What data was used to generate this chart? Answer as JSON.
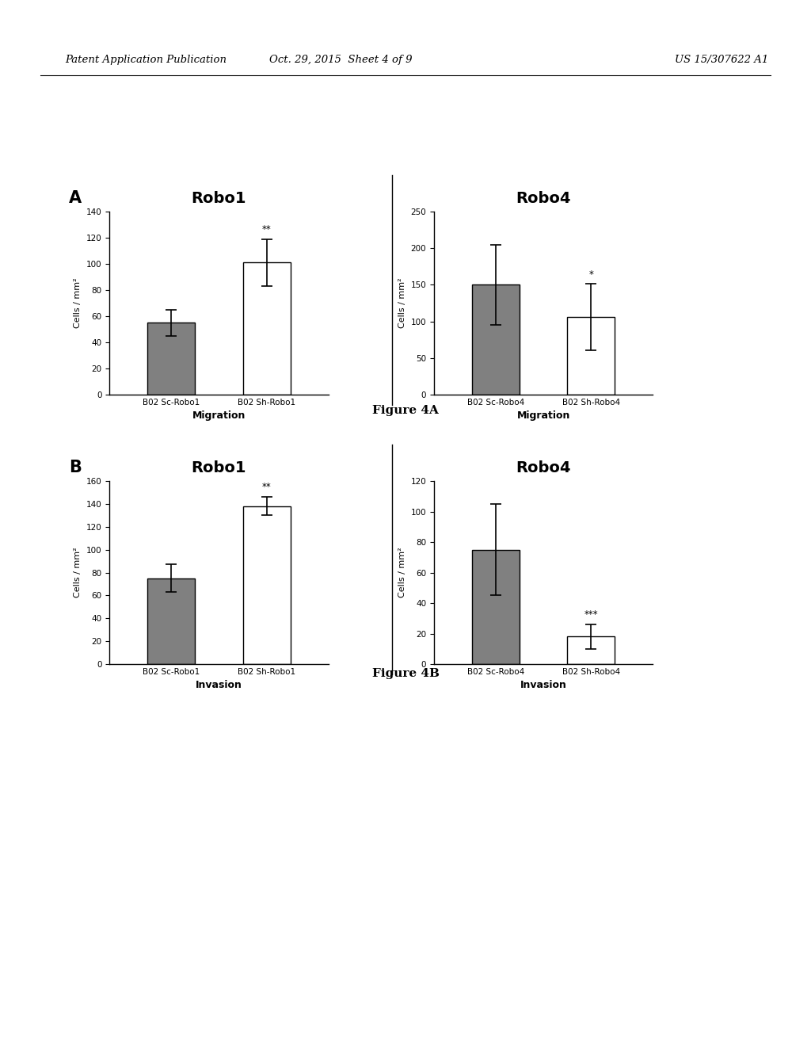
{
  "header_left": "Patent Application Publication",
  "header_mid": "Oct. 29, 2015  Sheet 4 of 9",
  "header_right": "US 15/307622 A1",
  "fig4A": {
    "label": "A",
    "panels": [
      {
        "title": "Robo1",
        "categories": [
          "B02 Sc-Robo1",
          "B02 Sh-Robo1"
        ],
        "values": [
          55,
          101
        ],
        "errors": [
          10,
          18
        ],
        "colors": [
          "#808080",
          "#ffffff"
        ],
        "xlabel": "Migration",
        "ylabel": "Cells / mm²",
        "ylim": [
          0,
          140
        ],
        "yticks": [
          0,
          20,
          40,
          60,
          80,
          100,
          120,
          140
        ],
        "significance": {
          "bar_index": 1,
          "text": "**"
        }
      },
      {
        "title": "Robo4",
        "categories": [
          "B02 Sc-Robo4",
          "B02 Sh-Robo4"
        ],
        "values": [
          150,
          106
        ],
        "errors": [
          55,
          45
        ],
        "colors": [
          "#808080",
          "#ffffff"
        ],
        "xlabel": "Migration",
        "ylabel": "Cells / mm²",
        "ylim": [
          0,
          250
        ],
        "yticks": [
          0,
          50,
          100,
          150,
          200,
          250
        ],
        "significance": {
          "bar_index": 1,
          "text": "*"
        }
      }
    ],
    "caption": "Figure 4A"
  },
  "fig4B": {
    "label": "B",
    "panels": [
      {
        "title": "Robo1",
        "categories": [
          "B02 Sc-Robo1",
          "B02 Sh-Robo1"
        ],
        "values": [
          75,
          138
        ],
        "errors": [
          12,
          8
        ],
        "colors": [
          "#808080",
          "#ffffff"
        ],
        "xlabel": "Invasion",
        "ylabel": "Cells / mm²",
        "ylim": [
          0,
          160
        ],
        "yticks": [
          0,
          20,
          40,
          60,
          80,
          100,
          120,
          140,
          160
        ],
        "significance": {
          "bar_index": 1,
          "text": "**"
        }
      },
      {
        "title": "Robo4",
        "categories": [
          "B02 Sc-Robo4",
          "B02 Sh-Robo4"
        ],
        "values": [
          75,
          18
        ],
        "errors": [
          30,
          8
        ],
        "colors": [
          "#808080",
          "#ffffff"
        ],
        "xlabel": "Invasion",
        "ylabel": "Cells / mm²",
        "ylim": [
          0,
          120
        ],
        "yticks": [
          0,
          20,
          40,
          60,
          80,
          100,
          120
        ],
        "significance": {
          "bar_index": 1,
          "text": "***"
        }
      }
    ],
    "caption": "Figure 4B"
  },
  "bar_width": 0.5,
  "bar_edgecolor": "#000000",
  "background_color": "#ffffff",
  "divider_color": "#000000"
}
